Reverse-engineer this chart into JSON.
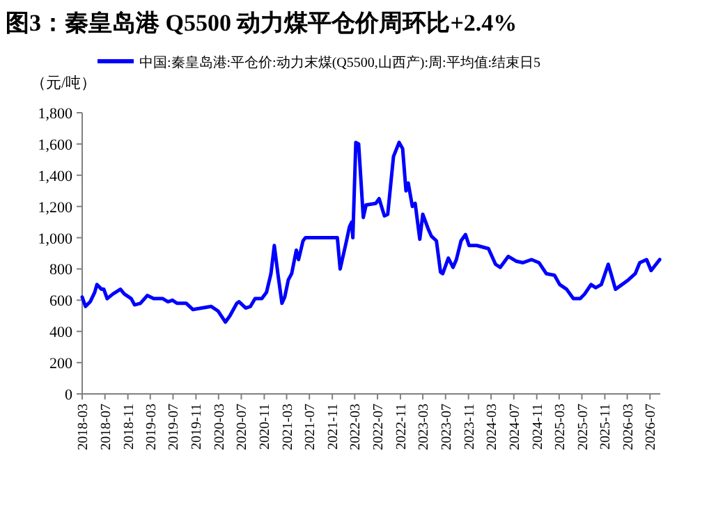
{
  "chart_data": {
    "type": "line",
    "title": "图3：秦皇岛港 Q5500 动力煤平仓价周环比+2.4%",
    "ylabel": "（元/吨）",
    "legend": "top",
    "grid": false,
    "marker": "none",
    "line_style": "solid",
    "xlim": [
      "2018-03-01",
      "2026-08-25"
    ],
    "xticks": [
      "2018-03",
      "2018-07",
      "2018-11",
      "2019-03",
      "2019-07",
      "2019-11",
      "2020-03",
      "2020-07",
      "2020-11",
      "2021-03",
      "2021-07",
      "2021-11",
      "2022-03",
      "2022-07",
      "2022-11",
      "2023-03",
      "2023-07",
      "2023-11",
      "2024-03",
      "2024-07",
      "2024-11",
      "2025-03",
      "2025-07",
      "2025-11",
      "2026-03",
      "2026-07"
    ],
    "ylim": [
      0,
      1800
    ],
    "yticks": [
      0,
      200,
      400,
      600,
      800,
      {
        "value": 1000,
        "label": "1,000"
      },
      {
        "value": 1200,
        "label": "1,200"
      },
      {
        "value": 1400,
        "label": "1,400"
      },
      {
        "value": 1600,
        "label": "1,600"
      },
      {
        "value": 1800,
        "label": "1,800"
      }
    ],
    "x": [
      "2018-03-01",
      "2018-03-19",
      "2018-04-13",
      "2018-05-07",
      "2018-05-19",
      "2018-06-13",
      "2018-06-25",
      "2018-07-13",
      "2018-08-13",
      "2018-09-22",
      "2018-10-13",
      "2018-11-19",
      "2018-12-07",
      "2019-01-07",
      "2019-02-13",
      "2019-03-19",
      "2019-05-07",
      "2019-06-04",
      "2019-06-28",
      "2019-07-22",
      "2019-09-10",
      "2019-10-16",
      "2019-12-04",
      "2020-01-22",
      "2020-02-28",
      "2020-04-07",
      "2020-05-01",
      "2020-06-07",
      "2020-06-19",
      "2020-07-25",
      "2020-08-19",
      "2020-09-13",
      "2020-10-19",
      "2020-11-13",
      "2020-12-07",
      "2020-12-25",
      "2021-01-13",
      "2021-02-04",
      "2021-02-19",
      "2021-03-10",
      "2021-03-28",
      "2021-04-22",
      "2021-05-04",
      "2021-05-28",
      "2021-06-10",
      "2021-11-28",
      "2021-12-13",
      "2022-01-16",
      "2022-02-01",
      "2022-02-13",
      "2022-02-19",
      "2022-03-07",
      "2022-03-22",
      "2022-04-07",
      "2022-04-16",
      "2022-05-01",
      "2022-06-22",
      "2022-07-10",
      "2022-08-07",
      "2022-08-25",
      "2022-09-25",
      "2022-10-25",
      "2022-11-13",
      "2022-12-01",
      "2022-12-13",
      "2023-01-04",
      "2023-01-19",
      "2023-02-13",
      "2023-03-01",
      "2023-04-01",
      "2023-04-16",
      "2023-05-13",
      "2023-06-04",
      "2023-06-16",
      "2023-07-16",
      "2023-08-10",
      "2023-08-28",
      "2023-09-22",
      "2023-10-16",
      "2023-11-04",
      "2023-12-16",
      "2024-02-16",
      "2024-03-25",
      "2024-04-19",
      "2024-06-01",
      "2024-07-13",
      "2024-08-19",
      "2024-10-04",
      "2024-11-13",
      "2024-12-22",
      "2025-02-04",
      "2025-03-04",
      "2025-04-10",
      "2025-05-16",
      "2025-06-22",
      "2025-07-16",
      "2025-08-19",
      "2025-09-13",
      "2025-10-13",
      "2025-11-19",
      "2025-12-04",
      "2025-12-28",
      "2026-02-01",
      "2026-03-07",
      "2026-04-13",
      "2026-05-07",
      "2026-06-13",
      "2026-07-07",
      "2026-08-22"
    ],
    "series": [
      {
        "name": "中国:秦皇岛港:平仓价:动力末煤(Q5500,山西产):周:平均值:结束日5",
        "color": "#0000ff",
        "values": [
          620,
          560,
          590,
          650,
          700,
          670,
          670,
          610,
          640,
          670,
          640,
          610,
          570,
          580,
          630,
          610,
          610,
          590,
          600,
          580,
          580,
          540,
          550,
          560,
          530,
          460,
          500,
          580,
          590,
          550,
          560,
          610,
          610,
          650,
          770,
          950,
          770,
          580,
          620,
          730,
          770,
          920,
          860,
          980,
          1000,
          1000,
          800,
          980,
          1070,
          1100,
          1000,
          1610,
          1600,
          1300,
          1130,
          1210,
          1220,
          1250,
          1140,
          1150,
          1520,
          1610,
          1570,
          1300,
          1350,
          1200,
          1220,
          990,
          1150,
          1050,
          1010,
          980,
          780,
          770,
          870,
          810,
          860,
          980,
          1020,
          950,
          950,
          930,
          830,
          810,
          880,
          850,
          840,
          860,
          840,
          770,
          760,
          700,
          670,
          610,
          610,
          640,
          700,
          680,
          700,
          830,
          770,
          670,
          700,
          730,
          770,
          840,
          860,
          790,
          860
        ]
      }
    ]
  }
}
